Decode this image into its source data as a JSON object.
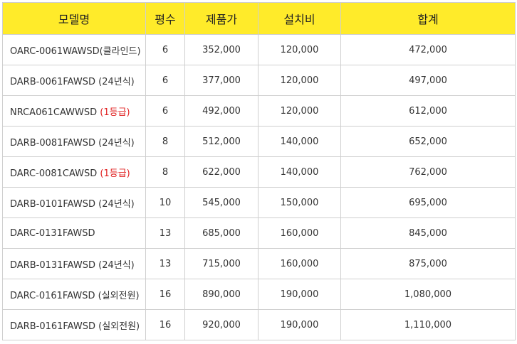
{
  "table": {
    "headers": [
      "모델명",
      "평수",
      "제품가",
      "설치비",
      "합계"
    ],
    "rows": [
      {
        "model": "OARC-0061WAWSD",
        "note": "(클라인드)",
        "note_highlight": false,
        "pyeong": "6",
        "price": "352,000",
        "install": "120,000",
        "total": "472,000"
      },
      {
        "model": "DARB-0061FAWSD ",
        "note": "(24년식)",
        "note_highlight": false,
        "pyeong": "6",
        "price": "377,000",
        "install": "120,000",
        "total": "497,000"
      },
      {
        "model": "NRCA061CAWWSD ",
        "note": "(1등급)",
        "note_highlight": true,
        "pyeong": "6",
        "price": "492,000",
        "install": "120,000",
        "total": "612,000"
      },
      {
        "model": "DARB-0081FAWSD ",
        "note": "(24년식)",
        "note_highlight": false,
        "pyeong": "8",
        "price": "512,000",
        "install": "140,000",
        "total": "652,000"
      },
      {
        "model": "DARC-0081CAWSD ",
        "note": "(1등급)",
        "note_highlight": true,
        "pyeong": "8",
        "price": "622,000",
        "install": "140,000",
        "total": "762,000"
      },
      {
        "model": "DARB-0101FAWSD ",
        "note": "(24년식)",
        "note_highlight": false,
        "pyeong": "10",
        "price": "545,000",
        "install": "150,000",
        "total": "695,000"
      },
      {
        "model": "DARC-0131FAWSD",
        "note": "",
        "note_highlight": false,
        "pyeong": "13",
        "price": "685,000",
        "install": "160,000",
        "total": "845,000"
      },
      {
        "model": "DARB-0131FAWSD ",
        "note": "(24년식)",
        "note_highlight": false,
        "pyeong": "13",
        "price": "715,000",
        "install": "160,000",
        "total": "875,000"
      },
      {
        "model": "DARC-0161FAWSD ",
        "note": "(실외전원)",
        "note_highlight": false,
        "pyeong": "16",
        "price": "890,000",
        "install": "190,000",
        "total": "1,080,000"
      },
      {
        "model": "DARB-0161FAWSD ",
        "note": "(실외전원)",
        "note_highlight": false,
        "pyeong": "16",
        "price": "920,000",
        "install": "190,000",
        "total": "1,110,000"
      }
    ]
  },
  "colors": {
    "header_bg": "#ffeb2a",
    "note_highlight": "#e02020",
    "border": "#cfcfcf"
  }
}
